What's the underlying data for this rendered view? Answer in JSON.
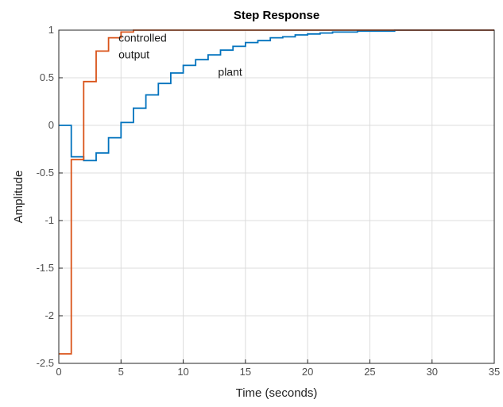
{
  "chart_data": {
    "type": "line",
    "style": "stairs",
    "title": "Step Response",
    "xlabel": "Time (seconds)",
    "ylabel": "Amplitude",
    "xlim": [
      0,
      35
    ],
    "ylim": [
      -2.5,
      1
    ],
    "xticks": [
      "0",
      "5",
      "10",
      "15",
      "20",
      "25",
      "30",
      "35"
    ],
    "yticks": [
      "-2.5",
      "-2",
      "-1.5",
      "-1",
      "-0.5",
      "0",
      "0.5",
      "1"
    ],
    "grid": true,
    "reference_line": 1,
    "series": [
      {
        "name": "plant",
        "color": "#0072BD",
        "x": [
          0,
          1,
          2,
          3,
          4,
          5,
          6,
          7,
          8,
          9,
          10,
          11,
          12,
          13,
          14,
          15,
          16,
          17,
          18,
          19,
          20,
          21,
          22,
          23,
          24,
          25,
          26,
          27,
          28,
          29,
          30,
          31,
          32,
          33,
          34,
          35
        ],
        "y": [
          0,
          -0.33,
          -0.37,
          -0.29,
          -0.13,
          0.03,
          0.18,
          0.32,
          0.44,
          0.55,
          0.63,
          0.69,
          0.74,
          0.79,
          0.83,
          0.87,
          0.89,
          0.92,
          0.93,
          0.95,
          0.96,
          0.97,
          0.98,
          0.98,
          0.99,
          0.99,
          0.99,
          1,
          1,
          1,
          1,
          1,
          1,
          1,
          1,
          1
        ]
      },
      {
        "name": "controlled output",
        "color": "#D95319",
        "x": [
          0,
          1,
          2,
          3,
          4,
          5,
          6,
          7,
          8,
          9,
          10,
          11,
          12,
          13,
          14,
          15,
          16,
          17,
          18,
          19,
          20,
          21,
          22,
          23,
          24,
          25,
          26,
          27,
          28,
          29,
          30,
          31,
          32,
          33,
          34,
          35
        ],
        "y": [
          -2.4,
          -0.36,
          0.46,
          0.78,
          0.92,
          0.98,
          1,
          1,
          1,
          1,
          1,
          1,
          1,
          1,
          1,
          1,
          1,
          1,
          1,
          1,
          1,
          1,
          1,
          1,
          1,
          1,
          1,
          1,
          1,
          1,
          1,
          1,
          1,
          1,
          1,
          1
        ]
      }
    ],
    "annotations": [
      {
        "lines": [
          "controlled",
          "output"
        ],
        "x": 4.8,
        "y": 0.88
      },
      {
        "lines": [
          "plant"
        ],
        "x": 12.8,
        "y": 0.52
      }
    ]
  }
}
